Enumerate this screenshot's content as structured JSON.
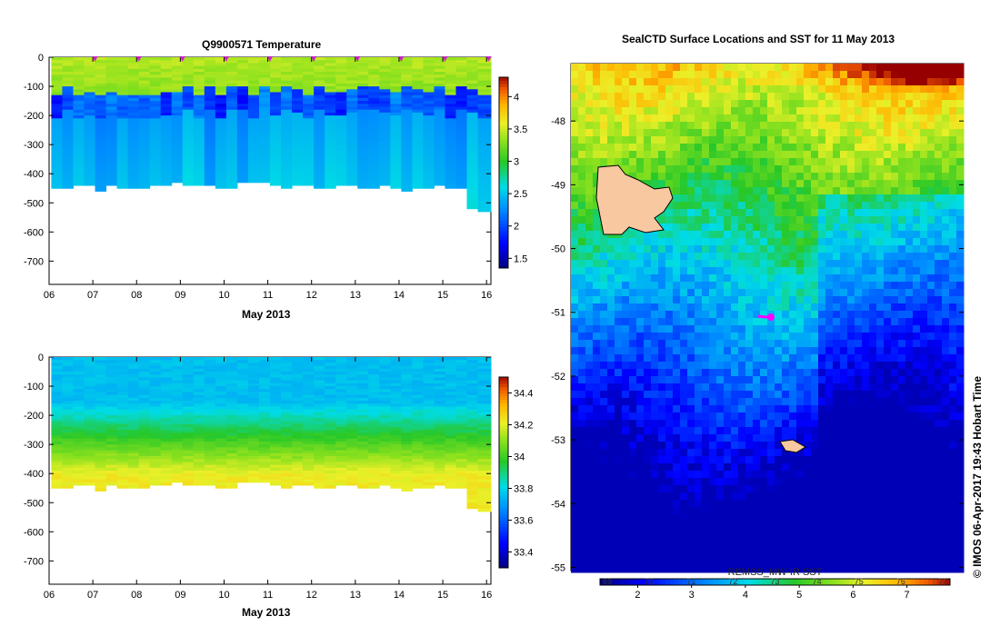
{
  "temperature_panel": {
    "title": "Q9900571  Temperature",
    "xlabel": "May 2013"
  },
  "salinity_panel": {
    "xlabel": "May 2013"
  },
  "map_panel": {
    "title": "SealCTD Surface Locations and SST for 11 May 2013",
    "colorbar_label": "REMSS_MW-IR SST",
    "credit": "© IMOS 06-Apr-2017 19:43 Hobart Time"
  },
  "colors": {
    "land": "#f8c8a0",
    "track": "#ff00ff",
    "marker": "#cc22cc"
  },
  "chart_data": [
    {
      "type": "heatmap",
      "title": "Q9900571  Temperature",
      "xlabel": "May 2013",
      "ylabel": "",
      "x_ticks": [
        "06",
        "07",
        "08",
        "09",
        "10",
        "11",
        "12",
        "13",
        "14",
        "15",
        "16"
      ],
      "y_ticks": [
        0,
        -100,
        -200,
        -300,
        -400,
        -500,
        -600,
        -700
      ],
      "xlim": [
        6,
        16.1
      ],
      "ylim": [
        -780,
        0
      ],
      "colorbar": {
        "ticks": [
          1.5,
          2,
          2.5,
          3,
          3.5,
          4
        ],
        "range": [
          1.35,
          4.3
        ]
      },
      "profile_days": [
        6.05,
        6.3,
        6.55,
        6.8,
        7.05,
        7.3,
        7.55,
        7.8,
        8.05,
        8.3,
        8.55,
        8.8,
        9.05,
        9.3,
        9.55,
        9.8,
        10.05,
        10.3,
        10.55,
        10.8,
        11.05,
        11.3,
        11.55,
        11.8,
        12.05,
        12.3,
        12.55,
        12.8,
        13.05,
        13.3,
        13.55,
        13.8,
        14.05,
        14.3,
        14.55,
        14.8,
        15.05,
        15.3,
        15.55,
        15.8
      ],
      "max_depth": [
        -450,
        -445,
        -440,
        -435,
        -455,
        -440,
        -445,
        -450,
        -448,
        -438,
        -432,
        -428,
        -435,
        -440,
        -438,
        -445,
        -450,
        -430,
        -425,
        -428,
        -440,
        -445,
        -440,
        -435,
        -448,
        -442,
        -438,
        -432,
        -445,
        -448,
        -440,
        -442,
        -455,
        -448,
        -442,
        -440,
        -445,
        -448,
        -520,
        -525
      ],
      "surface_value": 3.4,
      "thermocline_value": 1.9,
      "deep_value": 2.3,
      "surface_markers_days": [
        7.05,
        8.05,
        9.05,
        10.05,
        11.05,
        12.05,
        13.05,
        14.05,
        15.05,
        16.05
      ]
    },
    {
      "type": "heatmap",
      "title": "",
      "xlabel": "May 2013",
      "ylabel": "",
      "x_ticks": [
        "06",
        "07",
        "08",
        "09",
        "10",
        "11",
        "12",
        "13",
        "14",
        "15",
        "16"
      ],
      "y_ticks": [
        0,
        -100,
        -200,
        -300,
        -400,
        -500,
        -600,
        -700
      ],
      "xlim": [
        6,
        16.1
      ],
      "ylim": [
        -780,
        0
      ],
      "colorbar": {
        "ticks": [
          33.4,
          33.6,
          33.8,
          34,
          34.2,
          34.4
        ],
        "range": [
          33.3,
          34.5
        ]
      },
      "surface_value": 33.75,
      "deep_value": 34.15
    },
    {
      "type": "heatmap",
      "title": "SealCTD Surface Locations and SST for 11 May 2013",
      "xlabel": "",
      "ylabel": "",
      "y_ticks": [
        -48,
        -49,
        -50,
        -51,
        -52,
        -53,
        -54,
        -55
      ],
      "ylim": [
        -55.05,
        -47.1
      ],
      "colorbar_label": "REMSS_MW-IR SST",
      "colorbar_ticks": [
        2,
        3,
        4,
        5,
        6,
        7
      ],
      "colorbar_range": [
        1.3,
        7.8
      ],
      "colorbar_top_ticks": [
        69,
        70,
        71,
        72,
        73,
        74,
        75,
        76,
        77
      ],
      "track_points": [
        [
          0.315,
          -50.98
        ],
        [
          0.335,
          -51.0
        ],
        [
          0.355,
          -51.0
        ]
      ],
      "islands": [
        "kerguelen-main",
        "heard"
      ]
    }
  ]
}
